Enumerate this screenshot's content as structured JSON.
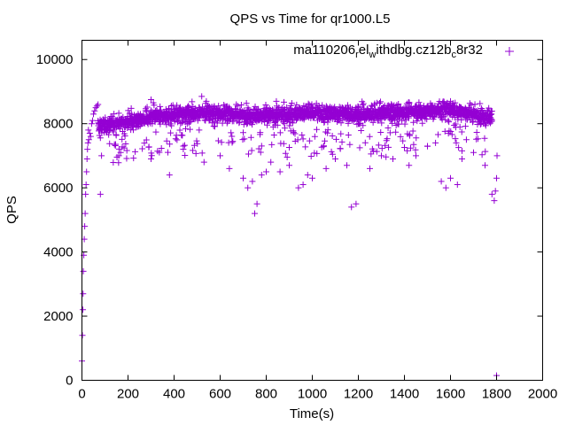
{
  "chart_data": {
    "type": "scatter",
    "title": "QPS vs Time for qr1000.L5",
    "xlabel": "Time(s)",
    "ylabel": "QPS",
    "xlim": [
      0,
      2000
    ],
    "ylim": [
      0,
      10600
    ],
    "xticks": [
      0,
      200,
      400,
      600,
      800,
      1000,
      1200,
      1400,
      1600,
      1800,
      2000
    ],
    "yticks": [
      0,
      2000,
      4000,
      6000,
      8000,
      10000
    ],
    "xtick_labels": [
      "0",
      "200",
      "400",
      "600",
      "800",
      "1000",
      "1200",
      "1400",
      "1600",
      "1800",
      "2000"
    ],
    "ytick_labels": [
      "0",
      "2000",
      "4000",
      "6000",
      "8000",
      "10000"
    ],
    "grid": false,
    "legend_position": "top-right",
    "marker": "+",
    "series": [
      {
        "name": "ma110206relwithdbg.cz12bc8r32",
        "legend_parts": {
          "p1": "ma110206",
          "s1": "r",
          "p2": "el",
          "s2": "w",
          "p3": "ithdbg.cz12b",
          "s3": "c",
          "p4": "8r32"
        },
        "color": "#9400d3",
        "sampling_interval_s": 1,
        "ramp_points": [
          [
            0,
            600
          ],
          [
            2,
            1400
          ],
          [
            4,
            2200
          ],
          [
            5,
            2700
          ],
          [
            6,
            3400
          ],
          [
            8,
            3900
          ],
          [
            10,
            4400
          ],
          [
            12,
            4800
          ],
          [
            14,
            5200
          ],
          [
            16,
            5800
          ],
          [
            18,
            6100
          ],
          [
            20,
            6500
          ],
          [
            22,
            6900
          ],
          [
            24,
            7200
          ],
          [
            26,
            7400
          ],
          [
            28,
            7800
          ],
          [
            30,
            7500
          ],
          [
            34,
            7700
          ],
          [
            38,
            7600
          ],
          [
            42,
            8000
          ],
          [
            46,
            8100
          ],
          [
            50,
            8300
          ],
          [
            55,
            8400
          ],
          [
            60,
            8500
          ],
          [
            65,
            8550
          ],
          [
            70,
            8600
          ]
        ],
        "bulk_time_range": [
          70,
          1780
        ],
        "bulk_center": 8050,
        "bulk_spread": 300,
        "steady_level_segments": [
          [
            70,
            7900
          ],
          [
            300,
            8200
          ],
          [
            520,
            8350
          ],
          [
            800,
            8250
          ],
          [
            1000,
            8350
          ],
          [
            1200,
            8300
          ],
          [
            1400,
            8350
          ],
          [
            1600,
            8450
          ],
          [
            1780,
            8200
          ]
        ],
        "dips": [
          [
            80,
            5800
          ],
          [
            160,
            7000
          ],
          [
            300,
            6900
          ],
          [
            380,
            6400
          ],
          [
            440,
            7300
          ],
          [
            530,
            6800
          ],
          [
            600,
            7000
          ],
          [
            640,
            6600
          ],
          [
            700,
            6300
          ],
          [
            720,
            6000
          ],
          [
            740,
            6200
          ],
          [
            750,
            5200
          ],
          [
            760,
            5500
          ],
          [
            780,
            6400
          ],
          [
            800,
            6500
          ],
          [
            820,
            6800
          ],
          [
            860,
            6500
          ],
          [
            900,
            6700
          ],
          [
            940,
            6000
          ],
          [
            960,
            6100
          ],
          [
            980,
            6400
          ],
          [
            1000,
            6300
          ],
          [
            1060,
            6600
          ],
          [
            1100,
            6900
          ],
          [
            1150,
            6700
          ],
          [
            1170,
            5400
          ],
          [
            1190,
            5500
          ],
          [
            1250,
            6600
          ],
          [
            1300,
            7000
          ],
          [
            1350,
            6900
          ],
          [
            1420,
            6700
          ],
          [
            1450,
            7000
          ],
          [
            1500,
            7300
          ],
          [
            1560,
            6200
          ],
          [
            1580,
            6000
          ],
          [
            1600,
            6300
          ],
          [
            1630,
            6100
          ],
          [
            1650,
            6900
          ],
          [
            1700,
            7100
          ],
          [
            1750,
            6700
          ],
          [
            1780,
            5800
          ],
          [
            1790,
            5600
          ],
          [
            1795,
            5900
          ],
          [
            1800,
            6300
          ],
          [
            1802,
            7000
          ],
          [
            1800,
            150
          ]
        ]
      }
    ]
  }
}
